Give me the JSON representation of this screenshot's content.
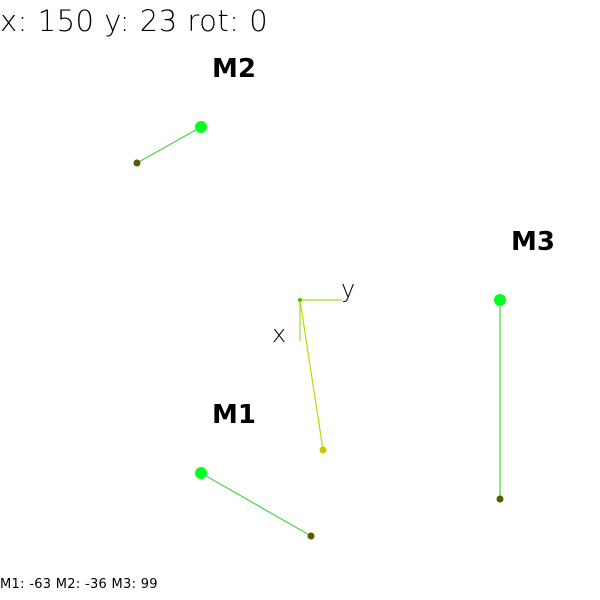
{
  "readout": {
    "text": "x: 150 y: 23 rot: 0",
    "x": 150,
    "y": 23,
    "rot": 0
  },
  "status": {
    "text": "M1: -63 M2: -36 M3: 99",
    "m1": -63,
    "m2": -36,
    "m3": 99
  },
  "motors": [
    {
      "label": "M1"
    },
    {
      "label": "M2"
    },
    {
      "label": "M3"
    }
  ],
  "axes": {
    "x_label": "x",
    "y_label": "y"
  },
  "colors": {
    "background": "#ffffff",
    "text": "#000000",
    "motor_pivot": "#00ff22",
    "motor_arm": "#22cc22",
    "motor_tip": "#5a5a00",
    "effector_arm": "#c8d400",
    "effector_tip": "#c8c800",
    "axis_line": "#99dd33",
    "axis_origin": "#33cc00"
  }
}
